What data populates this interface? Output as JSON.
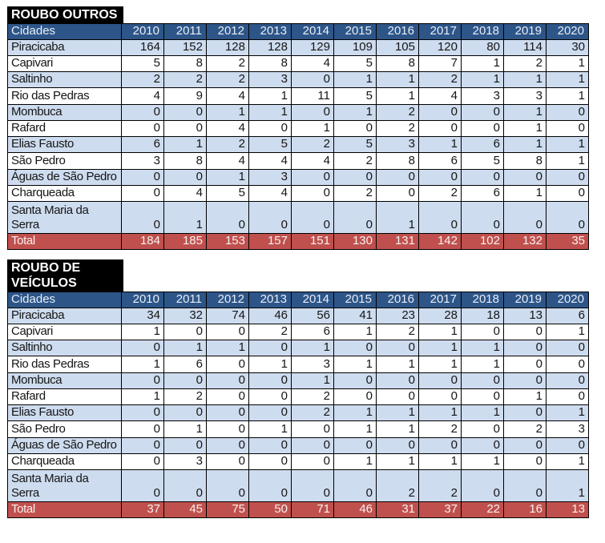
{
  "document": {
    "type": "statistics-tables",
    "language": "pt-BR"
  },
  "colors": {
    "title_bg": "#000000",
    "title_text": "#ffffff",
    "header_bg": "#2d5588",
    "header_text": "#e9eff7",
    "band_blue": "#cedcef",
    "band_white": "#ffffff",
    "total_bg": "#c0504d",
    "total_text": "#f7f1f0",
    "grid": "#000000",
    "cell_text": "#151515",
    "page_bg": "#ffffff"
  },
  "chart_data": [
    {
      "type": "table",
      "title": "ROUBO OUTROS",
      "city_column_label": "Cidades",
      "columns": [
        "2010",
        "2011",
        "2012",
        "2013",
        "2014",
        "2015",
        "2016",
        "2017",
        "2018",
        "2019",
        "2020"
      ],
      "rows": [
        {
          "city": "Piracicaba",
          "values": [
            164,
            152,
            128,
            128,
            129,
            109,
            105,
            120,
            80,
            114,
            30
          ]
        },
        {
          "city": "Capivari",
          "values": [
            5,
            8,
            2,
            8,
            4,
            5,
            8,
            7,
            1,
            2,
            1
          ]
        },
        {
          "city": "Saltinho",
          "values": [
            2,
            2,
            2,
            3,
            0,
            1,
            1,
            2,
            1,
            1,
            1
          ]
        },
        {
          "city": "Rio das Pedras",
          "values": [
            4,
            9,
            4,
            1,
            11,
            5,
            1,
            4,
            3,
            3,
            1
          ]
        },
        {
          "city": "Mombuca",
          "values": [
            0,
            0,
            1,
            1,
            0,
            1,
            2,
            0,
            0,
            1,
            0
          ]
        },
        {
          "city": "Rafard",
          "values": [
            0,
            0,
            4,
            0,
            1,
            0,
            2,
            0,
            0,
            1,
            0
          ]
        },
        {
          "city": "Elias Fausto",
          "values": [
            6,
            1,
            2,
            5,
            2,
            5,
            3,
            1,
            6,
            1,
            1
          ]
        },
        {
          "city": "São Pedro",
          "values": [
            3,
            8,
            4,
            4,
            4,
            2,
            8,
            6,
            5,
            8,
            1
          ]
        },
        {
          "city": "Águas de São Pedro",
          "values": [
            0,
            0,
            1,
            3,
            0,
            0,
            0,
            0,
            0,
            0,
            0
          ]
        },
        {
          "city": "Charqueada",
          "values": [
            0,
            4,
            5,
            4,
            0,
            2,
            0,
            2,
            6,
            1,
            0
          ]
        },
        {
          "city": "Santa Maria da Serra",
          "values": [
            0,
            1,
            0,
            0,
            0,
            0,
            1,
            0,
            0,
            0,
            0
          ],
          "tall": true
        }
      ],
      "total": {
        "label": "Total",
        "values": [
          184,
          185,
          153,
          157,
          151,
          130,
          131,
          142,
          102,
          132,
          35
        ]
      }
    },
    {
      "type": "table",
      "title": "ROUBO DE VEÍCULOS",
      "city_column_label": "Cidades",
      "columns": [
        "2010",
        "2011",
        "2012",
        "2013",
        "2014",
        "2015",
        "2016",
        "2017",
        "2018",
        "2019",
        "2020"
      ],
      "rows": [
        {
          "city": "Piracicaba",
          "values": [
            34,
            32,
            74,
            46,
            56,
            41,
            23,
            28,
            18,
            13,
            6
          ]
        },
        {
          "city": "Capivari",
          "values": [
            1,
            0,
            0,
            2,
            6,
            1,
            2,
            1,
            0,
            0,
            1
          ]
        },
        {
          "city": "Saltinho",
          "values": [
            0,
            1,
            1,
            0,
            1,
            0,
            0,
            1,
            1,
            0,
            0
          ]
        },
        {
          "city": "Rio das Pedras",
          "values": [
            1,
            6,
            0,
            1,
            3,
            1,
            1,
            1,
            1,
            0,
            0
          ]
        },
        {
          "city": "Mombuca",
          "values": [
            0,
            0,
            0,
            0,
            1,
            0,
            0,
            0,
            0,
            0,
            0
          ]
        },
        {
          "city": "Rafard",
          "values": [
            1,
            2,
            0,
            0,
            2,
            0,
            0,
            0,
            0,
            1,
            0
          ]
        },
        {
          "city": "Elias Fausto",
          "values": [
            0,
            0,
            0,
            0,
            2,
            1,
            1,
            1,
            1,
            0,
            1
          ]
        },
        {
          "city": "São Pedro",
          "values": [
            0,
            1,
            0,
            1,
            0,
            1,
            1,
            2,
            0,
            2,
            3
          ]
        },
        {
          "city": "Águas de São Pedro",
          "values": [
            0,
            0,
            0,
            0,
            0,
            0,
            0,
            0,
            0,
            0,
            0
          ]
        },
        {
          "city": "Charqueada",
          "values": [
            0,
            3,
            0,
            0,
            0,
            1,
            1,
            1,
            1,
            0,
            1
          ]
        },
        {
          "city": "Santa Maria da Serra",
          "values": [
            0,
            0,
            0,
            0,
            0,
            0,
            2,
            2,
            0,
            0,
            1
          ],
          "tall": true
        }
      ],
      "total": {
        "label": "Total",
        "values": [
          37,
          45,
          75,
          50,
          71,
          46,
          31,
          37,
          22,
          16,
          13
        ]
      }
    }
  ]
}
